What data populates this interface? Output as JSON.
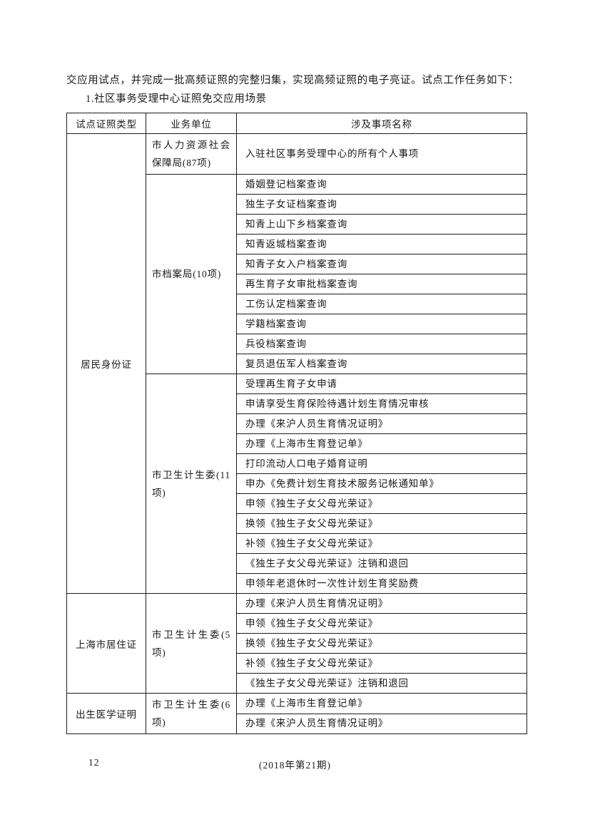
{
  "page": {
    "intro_line": "交应用试点，并完成一批高频证照的完整归集，实现高频证照的电子亮证。试点工作任务如下：",
    "section_heading": "1.社区事务受理中心证照免交应用场景",
    "footer": {
      "page_number": "12",
      "issue": "(2018年第21期)"
    },
    "text_color": "#1a1a1a",
    "background_color": "#ffffff",
    "border_color": "#1c1c1c"
  },
  "table": {
    "headers": [
      "试点证照类型",
      "业务单位",
      "涉及事项名称"
    ],
    "groups": [
      {
        "cert_type": "居民身份证",
        "units": [
          {
            "unit": "市人力资源社会保障局(87项)",
            "items": [
              "入驻社区事务受理中心的所有个人事项"
            ]
          },
          {
            "unit": "市档案局(10项)",
            "items": [
              "婚姻登记档案查询",
              "独生子女证档案查询",
              "知青上山下乡档案查询",
              "知青返城档案查询",
              "知青子女入户档案查询",
              "再生育子女审批档案查询",
              "工伤认定档案查询",
              "学籍档案查询",
              "兵役档案查询",
              "复员退伍军人档案查询"
            ]
          },
          {
            "unit": "市卫生计生委(11项)",
            "items": [
              "受理再生育子女申请",
              "申请享受生育保险待遇计划生育情况审核",
              "办理《来沪人员生育情况证明》",
              "办理《上海市生育登记单》",
              "打印流动人口电子婚育证明",
              "申办《免费计划生育技术服务记帐通知单》",
              "申领《独生子女父母光荣证》",
              "换领《独生子女父母光荣证》",
              "补领《独生子女父母光荣证》",
              "《独生子女父母光荣证》注销和退回",
              "申领年老退休时一次性计划生育奖励费"
            ]
          }
        ]
      },
      {
        "cert_type": "上海市居住证",
        "units": [
          {
            "unit": "市卫生计生委(5项)",
            "items": [
              "办理《来沪人员生育情况证明》",
              "申领《独生子女父母光荣证》",
              "换领《独生子女父母光荣证》",
              "补领《独生子女父母光荣证》",
              "《独生子女父母光荣证》注销和退回"
            ]
          }
        ]
      },
      {
        "cert_type": "出生医学证明",
        "units": [
          {
            "unit": "市卫生计生委(6项)",
            "items": [
              "办理《上海市生育登记单》",
              "办理《来沪人员生育情况证明》"
            ]
          }
        ]
      }
    ]
  }
}
